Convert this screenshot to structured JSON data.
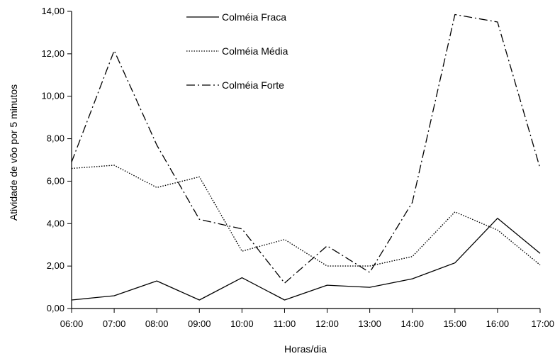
{
  "chart_data": {
    "type": "line",
    "xlabel": "Horas/dia",
    "ylabel": "Atividade de vôo por 5 minutos",
    "categories": [
      "06:00",
      "07:00",
      "08:00",
      "09:00",
      "10:00",
      "11:00",
      "12:00",
      "13:00",
      "14:00",
      "15:00",
      "16:00",
      "17:00"
    ],
    "y_tick_labels": [
      "0,00",
      "2,00",
      "4,00",
      "6,00",
      "8,00",
      "10,00",
      "12,00",
      "14,00"
    ],
    "ylim": [
      0,
      14
    ],
    "grid": false,
    "legend_position": "top-center",
    "series": [
      {
        "name": "Colméia Fraca",
        "style": "solid",
        "values": [
          0.4,
          0.6,
          1.3,
          0.4,
          1.45,
          0.4,
          1.1,
          1.0,
          1.4,
          2.15,
          4.25,
          2.6
        ]
      },
      {
        "name": "Colméia Média",
        "style": "dotted",
        "values": [
          6.6,
          6.75,
          5.7,
          6.2,
          2.7,
          3.25,
          2.0,
          2.0,
          2.45,
          4.55,
          3.7,
          2.05
        ]
      },
      {
        "name": "Colméia Forte",
        "style": "dash-dot",
        "values": [
          6.9,
          12.15,
          7.7,
          4.2,
          3.75,
          1.2,
          2.95,
          1.7,
          5.0,
          13.85,
          13.5,
          6.6
        ]
      }
    ]
  }
}
